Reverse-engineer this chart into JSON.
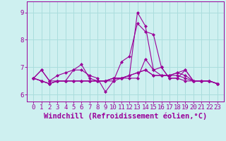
{
  "xlabel": "Windchill (Refroidissement éolien,°C)",
  "bg_color": "#cef0f0",
  "grid_color": "#aadddd",
  "line_color": "#990099",
  "x_values": [
    0,
    1,
    2,
    3,
    4,
    5,
    6,
    7,
    8,
    9,
    10,
    11,
    12,
    13,
    14,
    15,
    16,
    17,
    18,
    19,
    20,
    21,
    22,
    23
  ],
  "series": [
    [
      6.6,
      6.9,
      6.5,
      6.5,
      6.5,
      6.9,
      7.1,
      6.6,
      6.5,
      6.5,
      6.5,
      6.6,
      6.6,
      6.6,
      7.3,
      6.9,
      6.7,
      6.7,
      6.7,
      6.6,
      6.5,
      6.5,
      6.5,
      6.4
    ],
    [
      6.6,
      6.9,
      6.5,
      6.7,
      6.8,
      6.9,
      6.9,
      6.7,
      6.6,
      6.1,
      6.5,
      7.2,
      7.4,
      8.6,
      8.3,
      8.2,
      7.0,
      6.6,
      6.6,
      6.9,
      6.5,
      6.5,
      6.5,
      6.4
    ],
    [
      6.6,
      6.5,
      6.4,
      6.5,
      6.5,
      6.5,
      6.5,
      6.5,
      6.5,
      6.5,
      6.6,
      6.6,
      6.7,
      6.8,
      6.9,
      6.7,
      6.7,
      6.7,
      6.8,
      6.9,
      6.5,
      6.5,
      6.5,
      6.4
    ],
    [
      6.6,
      6.5,
      6.4,
      6.5,
      6.5,
      6.5,
      6.5,
      6.5,
      6.5,
      6.5,
      6.6,
      6.6,
      6.7,
      9.0,
      8.5,
      6.9,
      7.0,
      6.6,
      6.6,
      6.5,
      6.5,
      6.5,
      6.5,
      6.4
    ],
    [
      6.6,
      6.5,
      6.4,
      6.5,
      6.5,
      6.5,
      6.5,
      6.5,
      6.5,
      6.5,
      6.6,
      6.6,
      6.7,
      6.8,
      6.9,
      6.7,
      6.7,
      6.7,
      6.8,
      6.7,
      6.5,
      6.5,
      6.5,
      6.4
    ]
  ],
  "ylim": [
    5.75,
    9.4
  ],
  "yticks": [
    6,
    7,
    8,
    9
  ],
  "xticks": [
    0,
    1,
    2,
    3,
    4,
    5,
    6,
    7,
    8,
    9,
    10,
    11,
    12,
    13,
    14,
    15,
    16,
    17,
    18,
    19,
    20,
    21,
    22,
    23
  ],
  "tick_fontsize": 6.5,
  "xlabel_fontsize": 7.5,
  "marker": "D",
  "marker_size": 2.0,
  "linewidth": 0.8
}
